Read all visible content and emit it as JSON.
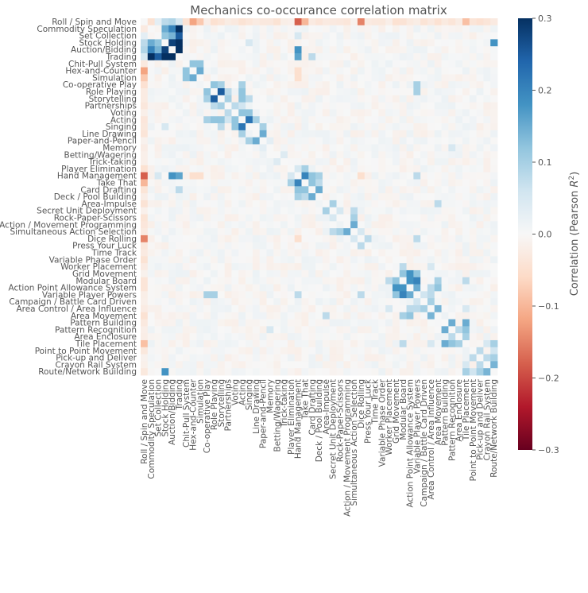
{
  "chart_data": {
    "type": "heatmap",
    "title": "Mechanics co-occurance correlation matrix",
    "colorbar_label": "Correlation (Pearson R²)",
    "colorbar_range": [
      -0.3,
      0.3
    ],
    "colorbar_ticks": [
      "0.3",
      "0.2",
      "0.1",
      "0.0",
      "−0.1",
      "−0.2",
      "−0.3"
    ],
    "colormap": "RdBu",
    "labels": [
      "Roll / Spin and Move",
      "Commodity Speculation",
      "Set Collection",
      "Stock Holding",
      "Auction/Bidding",
      "Trading",
      "Chit-Pull System",
      "Hex-and-Counter",
      "Simulation",
      "Co-operative Play",
      "Role Playing",
      "Storytelling",
      "Partnerships",
      "Voting",
      "Acting",
      "Singing",
      "Line Drawing",
      "Paper-and-Pencil",
      "Memory",
      "Betting/Wagering",
      "Trick-taking",
      "Player Elimination",
      "Hand Management",
      "Take That",
      "Card Drafting",
      "Deck / Pool Building",
      "Area-Impulse",
      "Secret Unit Deployment",
      "Rock-Paper-Scissors",
      "Action / Movement Programming",
      "Simultaneous Action Selection",
      "Dice Rolling",
      "Press Your Luck",
      "Time Track",
      "Variable Phase Order",
      "Worker Placement",
      "Grid Movement",
      "Modular Board",
      "Action Point Allowance System",
      "Variable Player Powers",
      "Campaign / Battle Card Driven",
      "Area Control / Area Influence",
      "Area Movement",
      "Pattern Building",
      "Pattern Recognition",
      "Area Enclosure",
      "Tile Placement",
      "Point to Point Movement",
      "Pick-up and Deliver",
      "Crayon Rail System",
      "Route/Network Building"
    ],
    "strong_pairs": [
      [
        0,
        2,
        0.03
      ],
      [
        0,
        3,
        0.08
      ],
      [
        0,
        4,
        0.09
      ],
      [
        0,
        5,
        0.05
      ],
      [
        0,
        7,
        -0.12
      ],
      [
        0,
        8,
        -0.08
      ],
      [
        0,
        22,
        -0.18
      ],
      [
        0,
        31,
        -0.15
      ],
      [
        0,
        23,
        -0.1
      ],
      [
        0,
        46,
        -0.09
      ],
      [
        1,
        3,
        0.15
      ],
      [
        1,
        4,
        0.2
      ],
      [
        1,
        5,
        0.3
      ],
      [
        2,
        3,
        0.12
      ],
      [
        2,
        4,
        0.14
      ],
      [
        2,
        5,
        0.25
      ],
      [
        2,
        22,
        0.05
      ],
      [
        3,
        4,
        0.28
      ],
      [
        3,
        5,
        0.3
      ],
      [
        3,
        15,
        0.05
      ],
      [
        3,
        50,
        0.18
      ],
      [
        4,
        5,
        0.3
      ],
      [
        4,
        22,
        0.18
      ],
      [
        5,
        22,
        0.16
      ],
      [
        5,
        24,
        0.08
      ],
      [
        6,
        7,
        0.12
      ],
      [
        6,
        8,
        0.12
      ],
      [
        7,
        8,
        0.15
      ],
      [
        7,
        22,
        -0.05
      ],
      [
        9,
        10,
        0.12
      ],
      [
        9,
        11,
        0.1
      ],
      [
        9,
        14,
        0.1
      ],
      [
        9,
        39,
        0.1
      ],
      [
        10,
        11,
        0.25
      ],
      [
        10,
        12,
        0.08
      ],
      [
        10,
        14,
        0.12
      ],
      [
        10,
        39,
        0.1
      ],
      [
        11,
        12,
        0.1
      ],
      [
        11,
        14,
        0.12
      ],
      [
        11,
        15,
        0.08
      ],
      [
        12,
        13,
        0.08
      ],
      [
        12,
        14,
        0.06
      ],
      [
        13,
        14,
        0.12
      ],
      [
        13,
        15,
        0.12
      ],
      [
        14,
        15,
        0.22
      ],
      [
        14,
        16,
        0.1
      ],
      [
        15,
        17,
        0.1
      ],
      [
        16,
        17,
        0.15
      ],
      [
        17,
        18,
        0.03
      ],
      [
        21,
        22,
        0.05
      ],
      [
        21,
        23,
        0.1
      ],
      [
        22,
        23,
        0.2
      ],
      [
        22,
        24,
        0.12
      ],
      [
        22,
        25,
        0.1
      ],
      [
        22,
        31,
        -0.05
      ],
      [
        22,
        39,
        0.08
      ],
      [
        23,
        24,
        0.12
      ],
      [
        23,
        25,
        0.08
      ],
      [
        24,
        25,
        0.15
      ],
      [
        26,
        27,
        0.1
      ],
      [
        26,
        42,
        0.08
      ],
      [
        27,
        28,
        0.05
      ],
      [
        27,
        30,
        0.08
      ],
      [
        28,
        30,
        0.1
      ],
      [
        29,
        30,
        0.15
      ],
      [
        30,
        31,
        0.05
      ],
      [
        31,
        32,
        0.08
      ],
      [
        31,
        39,
        0.08
      ],
      [
        35,
        37,
        0.08
      ],
      [
        35,
        41,
        0.05
      ],
      [
        36,
        37,
        0.12
      ],
      [
        36,
        38,
        0.18
      ],
      [
        36,
        39,
        0.12
      ],
      [
        37,
        38,
        0.18
      ],
      [
        37,
        39,
        0.2
      ],
      [
        37,
        42,
        0.1
      ],
      [
        37,
        46,
        0.08
      ],
      [
        38,
        39,
        0.15
      ],
      [
        38,
        41,
        0.08
      ],
      [
        38,
        42,
        0.12
      ],
      [
        39,
        40,
        0.06
      ],
      [
        39,
        41,
        0.08
      ],
      [
        40,
        41,
        0.1
      ],
      [
        41,
        42,
        0.14
      ],
      [
        41,
        46,
        0.05
      ],
      [
        43,
        44,
        0.15
      ],
      [
        43,
        46,
        0.15
      ],
      [
        44,
        45,
        0.08
      ],
      [
        44,
        46,
        0.12
      ],
      [
        45,
        46,
        0.1
      ],
      [
        46,
        50,
        0.1
      ],
      [
        46,
        49,
        0.05
      ],
      [
        47,
        48,
        0.08
      ],
      [
        47,
        50,
        0.06
      ],
      [
        48,
        49,
        0.08
      ],
      [
        48,
        50,
        0.1
      ],
      [
        49,
        50,
        0.14
      ],
      [
        19,
        20,
        0.04
      ],
      [
        18,
        44,
        0.05
      ],
      [
        8,
        22,
        -0.05
      ]
    ]
  }
}
